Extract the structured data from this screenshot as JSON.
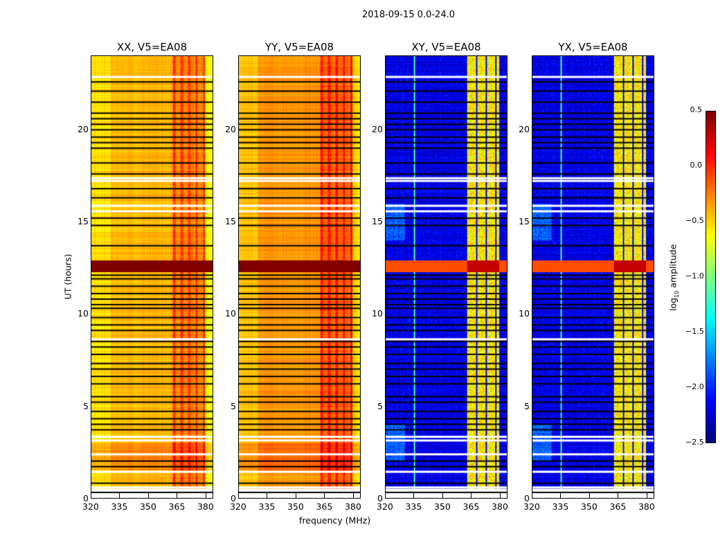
{
  "suptitle": "2018-09-15 0.0-24.0",
  "chart_data": {
    "type": "heatmap",
    "xlabel": "frequency (MHz)",
    "ylabel": "UT (hours)",
    "xlim": [
      320,
      384
    ],
    "ylim": [
      0,
      24
    ],
    "xticks": [
      "320",
      "335",
      "350",
      "365",
      "380"
    ],
    "xtick_values": [
      320,
      335,
      350,
      365,
      380
    ],
    "yticks": [
      "0",
      "5",
      "10",
      "15",
      "20"
    ],
    "ytick_values": [
      0,
      5,
      10,
      15,
      20
    ],
    "panels": [
      {
        "title": "XX, V5=EA08",
        "kind": "parallel",
        "base": -0.42
      },
      {
        "title": "YY, V5=EA08",
        "kind": "parallel",
        "base": -0.32
      },
      {
        "title": "XY, V5=EA08",
        "kind": "cross",
        "base": -2.2
      },
      {
        "title": "YX, V5=EA08",
        "kind": "cross",
        "base": -2.2
      }
    ],
    "rfi_band_mhz": [
      363,
      380
    ],
    "strong_rfi_hours": [
      12.3,
      12.9
    ],
    "flagged_white_hours": [
      0.0,
      0.35,
      0.55,
      1.4,
      2.35,
      3.1,
      3.3,
      8.6,
      15.55,
      15.85,
      17.2,
      17.35,
      22.85
    ],
    "flagged_black_hours": [
      0.8,
      1.7,
      2.0,
      3.7,
      4.0,
      4.3,
      4.7,
      5.2,
      5.5,
      6.2,
      6.6,
      7.0,
      7.3,
      7.8,
      8.2,
      8.5,
      9.1,
      9.4,
      9.8,
      10.3,
      10.5,
      10.8,
      11.1,
      11.5,
      11.9,
      12.1,
      13.7,
      14.8,
      15.2,
      16.3,
      16.8,
      17.6,
      18.2,
      19.0,
      19.3,
      19.6,
      20.0,
      20.3,
      20.6,
      20.9,
      21.5,
      22.1,
      22.6
    ],
    "colorbar": {
      "label": "log10 amplitude",
      "label_main": "log",
      "label_sub": "10",
      "label_rest": " amplitude",
      "range": [
        -2.5,
        0.5
      ],
      "ticks": [
        "0.5",
        "0.0",
        "−0.5",
        "−1.0",
        "−1.5",
        "−2.0",
        "−2.5"
      ],
      "tick_values": [
        0.5,
        0.0,
        -0.5,
        -1.0,
        -1.5,
        -2.0,
        -2.5
      ],
      "colormap": "jet"
    }
  }
}
